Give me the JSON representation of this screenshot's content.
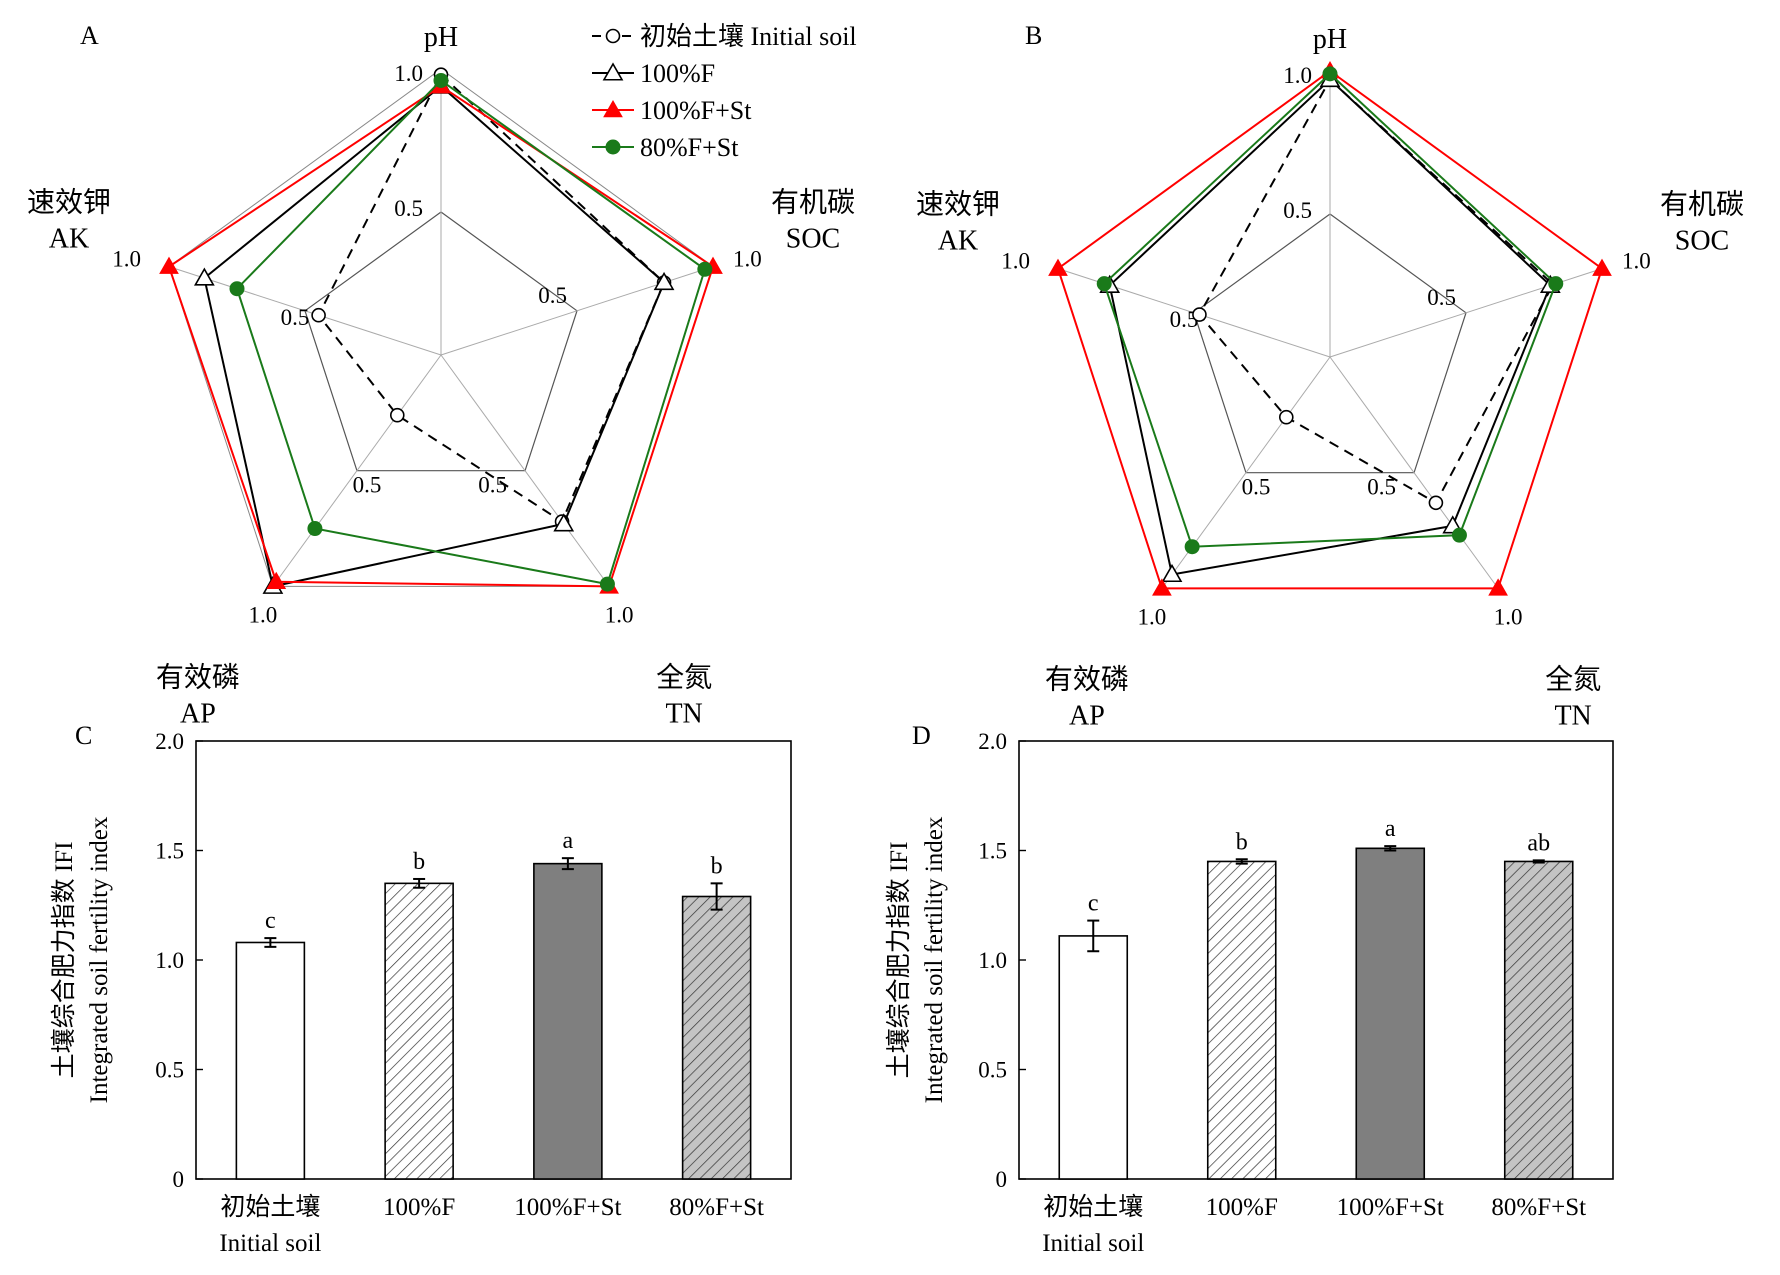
{
  "legend": [
    {
      "key": "initial",
      "label": "初始土壤 Initial soil",
      "color": "#000000",
      "dashed": true,
      "marker": "circle-open"
    },
    {
      "key": "f100",
      "label": "100%F",
      "color": "#000000",
      "dashed": false,
      "marker": "triangle-open"
    },
    {
      "key": "f100st",
      "label": "100%F+St",
      "color": "#ff0000",
      "dashed": false,
      "marker": "triangle-filled"
    },
    {
      "key": "f80st",
      "label": "80%F+St",
      "color": "#1a7a1a",
      "dashed": false,
      "marker": "circle-filled"
    }
  ],
  "chart_data": [
    {
      "panel": "A",
      "type": "radar",
      "axes": [
        {
          "name_cn": "",
          "name_en": "pH",
          "tick_mid": "0.5",
          "tick_max": "1.0"
        },
        {
          "name_cn": "有机碳",
          "name_en": "SOC",
          "tick_mid": "0.5",
          "tick_max": "1.0"
        },
        {
          "name_cn": "全氮",
          "name_en": "TN",
          "tick_mid": "0.5",
          "tick_max": "1.0"
        },
        {
          "name_cn": "有效磷",
          "name_en": "AP",
          "tick_mid": "0.5",
          "tick_max": "1.0"
        },
        {
          "name_cn": "速效钾",
          "name_en": "AK",
          "tick_mid": "0.5",
          "tick_max": "1.0"
        }
      ],
      "range": [
        0,
        1.0
      ],
      "gridlines": [
        0.5,
        1.0
      ],
      "series": [
        {
          "key": "initial",
          "values": [
            0.98,
            0.82,
            0.72,
            0.26,
            0.45
          ]
        },
        {
          "key": "f100",
          "values": [
            0.94,
            0.82,
            0.73,
            1.0,
            0.87
          ]
        },
        {
          "key": "f100st",
          "values": [
            0.94,
            1.0,
            1.0,
            0.98,
            1.0
          ]
        },
        {
          "key": "f80st",
          "values": [
            0.96,
            0.97,
            0.99,
            0.75,
            0.75
          ]
        }
      ]
    },
    {
      "panel": "B",
      "type": "radar",
      "axes": [
        {
          "name_cn": "",
          "name_en": "pH",
          "tick_mid": "0.5",
          "tick_max": "1.0"
        },
        {
          "name_cn": "有机碳",
          "name_en": "SOC",
          "tick_mid": "0.5",
          "tick_max": "1.0"
        },
        {
          "name_cn": "全氮",
          "name_en": "TN",
          "tick_mid": "0.5",
          "tick_max": "1.0"
        },
        {
          "name_cn": "有效磷",
          "name_en": "AP",
          "tick_mid": "0.5",
          "tick_max": "1.0"
        },
        {
          "name_cn": "速效钾",
          "name_en": "AK",
          "tick_mid": "0.5",
          "tick_max": "1.0"
        }
      ],
      "range": [
        0,
        1.0
      ],
      "gridlines": [
        0.5,
        1.0
      ],
      "series": [
        {
          "key": "initial",
          "values": [
            0.97,
            0.82,
            0.63,
            0.26,
            0.48
          ]
        },
        {
          "key": "f100",
          "values": [
            0.97,
            0.81,
            0.73,
            0.94,
            0.81
          ]
        },
        {
          "key": "f100st",
          "values": [
            1.0,
            1.0,
            1.0,
            1.0,
            1.0
          ]
        },
        {
          "key": "f80st",
          "values": [
            0.99,
            0.83,
            0.77,
            0.82,
            0.83
          ]
        }
      ]
    },
    {
      "panel": "C",
      "type": "bar",
      "categories": [
        {
          "cn": "初始土壤",
          "en": "Initial soil"
        },
        {
          "cn": "",
          "en": "100%F"
        },
        {
          "cn": "",
          "en": "100%F+St"
        },
        {
          "cn": "",
          "en": "80%F+St"
        }
      ],
      "values": [
        1.08,
        1.35,
        1.44,
        1.29
      ],
      "errors": [
        0.02,
        0.02,
        0.025,
        0.06
      ],
      "significance": [
        "c",
        "b",
        "a",
        "b"
      ],
      "fills": [
        "white",
        "hatch-white",
        "gray",
        "hatch-gray"
      ],
      "ylabel_cn": "土壤综合肥力指数 IFI",
      "ylabel_en": "Integrated soil fertility index",
      "ylim": [
        0,
        2.0
      ],
      "yticks": [
        "0",
        "0.5",
        "1.0",
        "1.5",
        "2.0"
      ]
    },
    {
      "panel": "D",
      "type": "bar",
      "categories": [
        {
          "cn": "初始土壤",
          "en": "Initial soil"
        },
        {
          "cn": "",
          "en": "100%F"
        },
        {
          "cn": "",
          "en": "100%F+St"
        },
        {
          "cn": "",
          "en": "80%F+St"
        }
      ],
      "values": [
        1.11,
        1.45,
        1.51,
        1.45
      ],
      "errors": [
        0.07,
        0.01,
        0.01,
        0.005
      ],
      "significance": [
        "c",
        "b",
        "a",
        "ab"
      ],
      "fills": [
        "white",
        "hatch-white",
        "gray",
        "hatch-gray"
      ],
      "ylabel_cn": "土壤综合肥力指数 IFI",
      "ylabel_en": "Integrated soil fertility index",
      "ylim": [
        0,
        2.0
      ],
      "yticks": [
        "0",
        "0.5",
        "1.0",
        "1.5",
        "2.0"
      ]
    }
  ]
}
